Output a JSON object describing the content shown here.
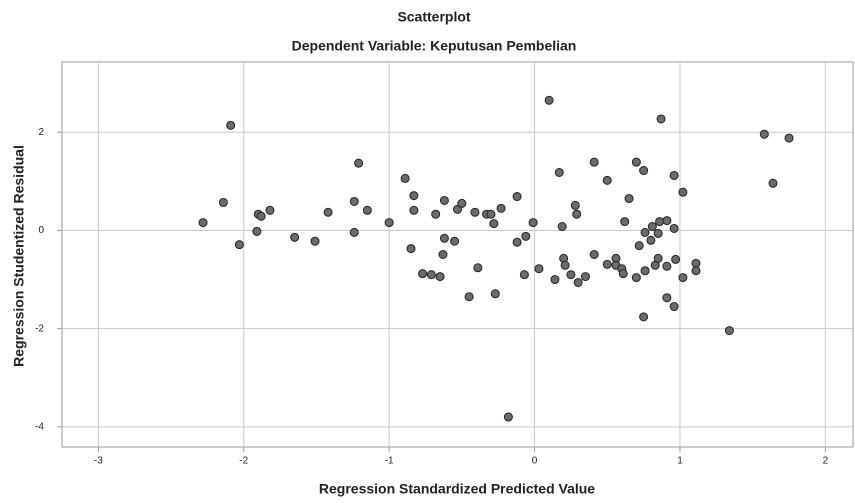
{
  "chart_data": {
    "type": "scatter",
    "title": "Scatterplot",
    "subtitle": "Dependent Variable: Keputusan Pembelian",
    "x_label": "Regression Standardized Predicted Value",
    "y_label": "Regression Studentized Residual",
    "xlim": [
      -3.25,
      2.19
    ],
    "ylim": [
      -4.41,
      3.43
    ],
    "xticks": [
      -3,
      -2,
      -1,
      0,
      1,
      2
    ],
    "yticks": [
      -4,
      -2,
      0,
      2
    ],
    "grid": true,
    "color": "#6b6b6b",
    "x": [
      -2.28,
      -2.09,
      -2.14,
      -2.03,
      -1.91,
      -1.9,
      -1.88,
      -1.82,
      -1.65,
      -1.51,
      -1.42,
      -1.24,
      -1.21,
      -1.24,
      -1.15,
      -1.0,
      -0.89,
      -0.85,
      -0.83,
      -0.83,
      -0.77,
      -0.71,
      -0.68,
      -0.65,
      -0.62,
      -0.62,
      -0.63,
      -0.55,
      -0.53,
      -0.5,
      -0.45,
      -0.41,
      -0.39,
      -0.33,
      -0.3,
      -0.28,
      -0.27,
      -0.23,
      -0.18,
      -0.12,
      -0.12,
      -0.06,
      -0.07,
      -0.01,
      0.03,
      0.1,
      0.14,
      0.17,
      0.19,
      0.2,
      0.21,
      0.25,
      0.28,
      0.29,
      0.3,
      0.35,
      0.41,
      0.41,
      0.5,
      0.5,
      0.56,
      0.56,
      0.6,
      0.61,
      0.62,
      0.65,
      0.7,
      0.72,
      0.7,
      0.76,
      0.75,
      0.76,
      0.75,
      0.8,
      0.81,
      0.83,
      0.85,
      0.85,
      0.86,
      0.87,
      0.91,
      0.91,
      0.91,
      0.97,
      0.96,
      0.96,
      0.96,
      1.02,
      1.02,
      1.11,
      1.11,
      1.34,
      1.58,
      1.64,
      1.75
    ],
    "values": [
      0.16,
      2.14,
      0.57,
      -0.29,
      -0.02,
      0.33,
      0.29,
      0.41,
      -0.14,
      -0.22,
      0.37,
      0.59,
      1.37,
      -0.04,
      0.41,
      0.16,
      1.06,
      -0.37,
      0.71,
      0.41,
      -0.88,
      -0.9,
      0.33,
      -0.94,
      0.61,
      -0.16,
      -0.49,
      -0.22,
      0.43,
      0.55,
      -1.35,
      0.37,
      -0.76,
      0.33,
      0.33,
      0.14,
      -1.29,
      0.45,
      -3.8,
      0.69,
      -0.24,
      -0.12,
      -0.9,
      0.16,
      -0.78,
      2.65,
      -1.0,
      1.18,
      0.08,
      -0.57,
      -0.71,
      -0.9,
      0.51,
      0.33,
      -1.06,
      -0.94,
      -0.49,
      1.39,
      1.02,
      -0.69,
      -0.57,
      -0.71,
      -0.78,
      -0.88,
      0.18,
      0.65,
      1.39,
      -0.31,
      -0.96,
      -0.04,
      1.22,
      -0.82,
      -1.76,
      -0.2,
      0.08,
      -0.71,
      -0.06,
      -0.57,
      0.18,
      2.27,
      0.2,
      -1.37,
      -0.73,
      -0.59,
      0.04,
      -1.55,
      1.12,
      0.78,
      -0.96,
      -0.67,
      -0.82,
      -2.04,
      1.96,
      0.96,
      1.88
    ]
  }
}
